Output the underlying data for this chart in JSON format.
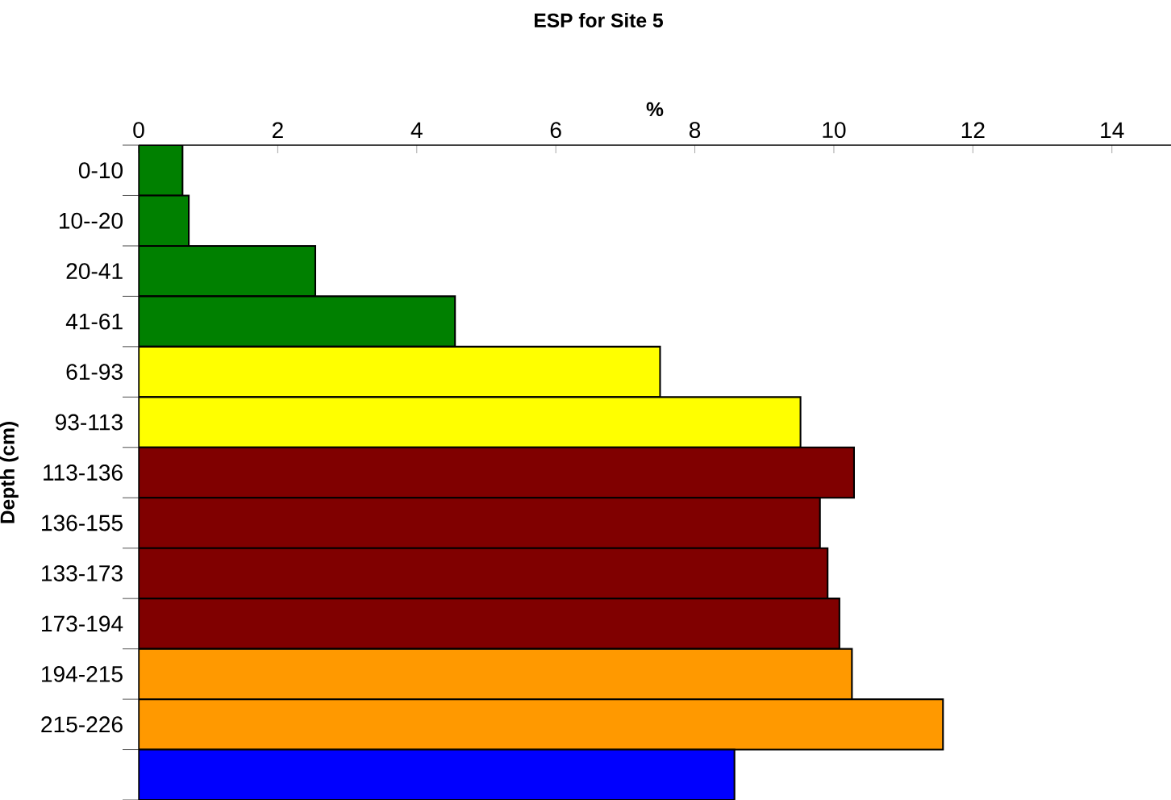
{
  "chart_data": {
    "type": "bar",
    "orientation": "horizontal",
    "title": "ESP for Site 5",
    "xlabel": "%",
    "ylabel": "Depth (cm)",
    "categories": [
      "0-10",
      "10--20",
      "20-41",
      "41-61",
      "61-93",
      "93-113",
      "113-136",
      "136-155",
      "133-173",
      "173-194",
      "194-215",
      "215-226",
      null
    ],
    "values": [
      0.63,
      0.72,
      2.54,
      4.55,
      7.5,
      9.52,
      10.29,
      9.8,
      9.91,
      10.08,
      10.26,
      11.57,
      8.57
    ],
    "colors": [
      "#008000",
      "#008000",
      "#008000",
      "#008000",
      "#ffff00",
      "#ffff00",
      "#800000",
      "#800000",
      "#800000",
      "#800000",
      "#ff9900",
      "#ff9900",
      "#0000ff"
    ],
    "xlim": [
      0,
      14.85
    ],
    "xticks": [
      0,
      2,
      4,
      6,
      8,
      10,
      12,
      14
    ]
  }
}
